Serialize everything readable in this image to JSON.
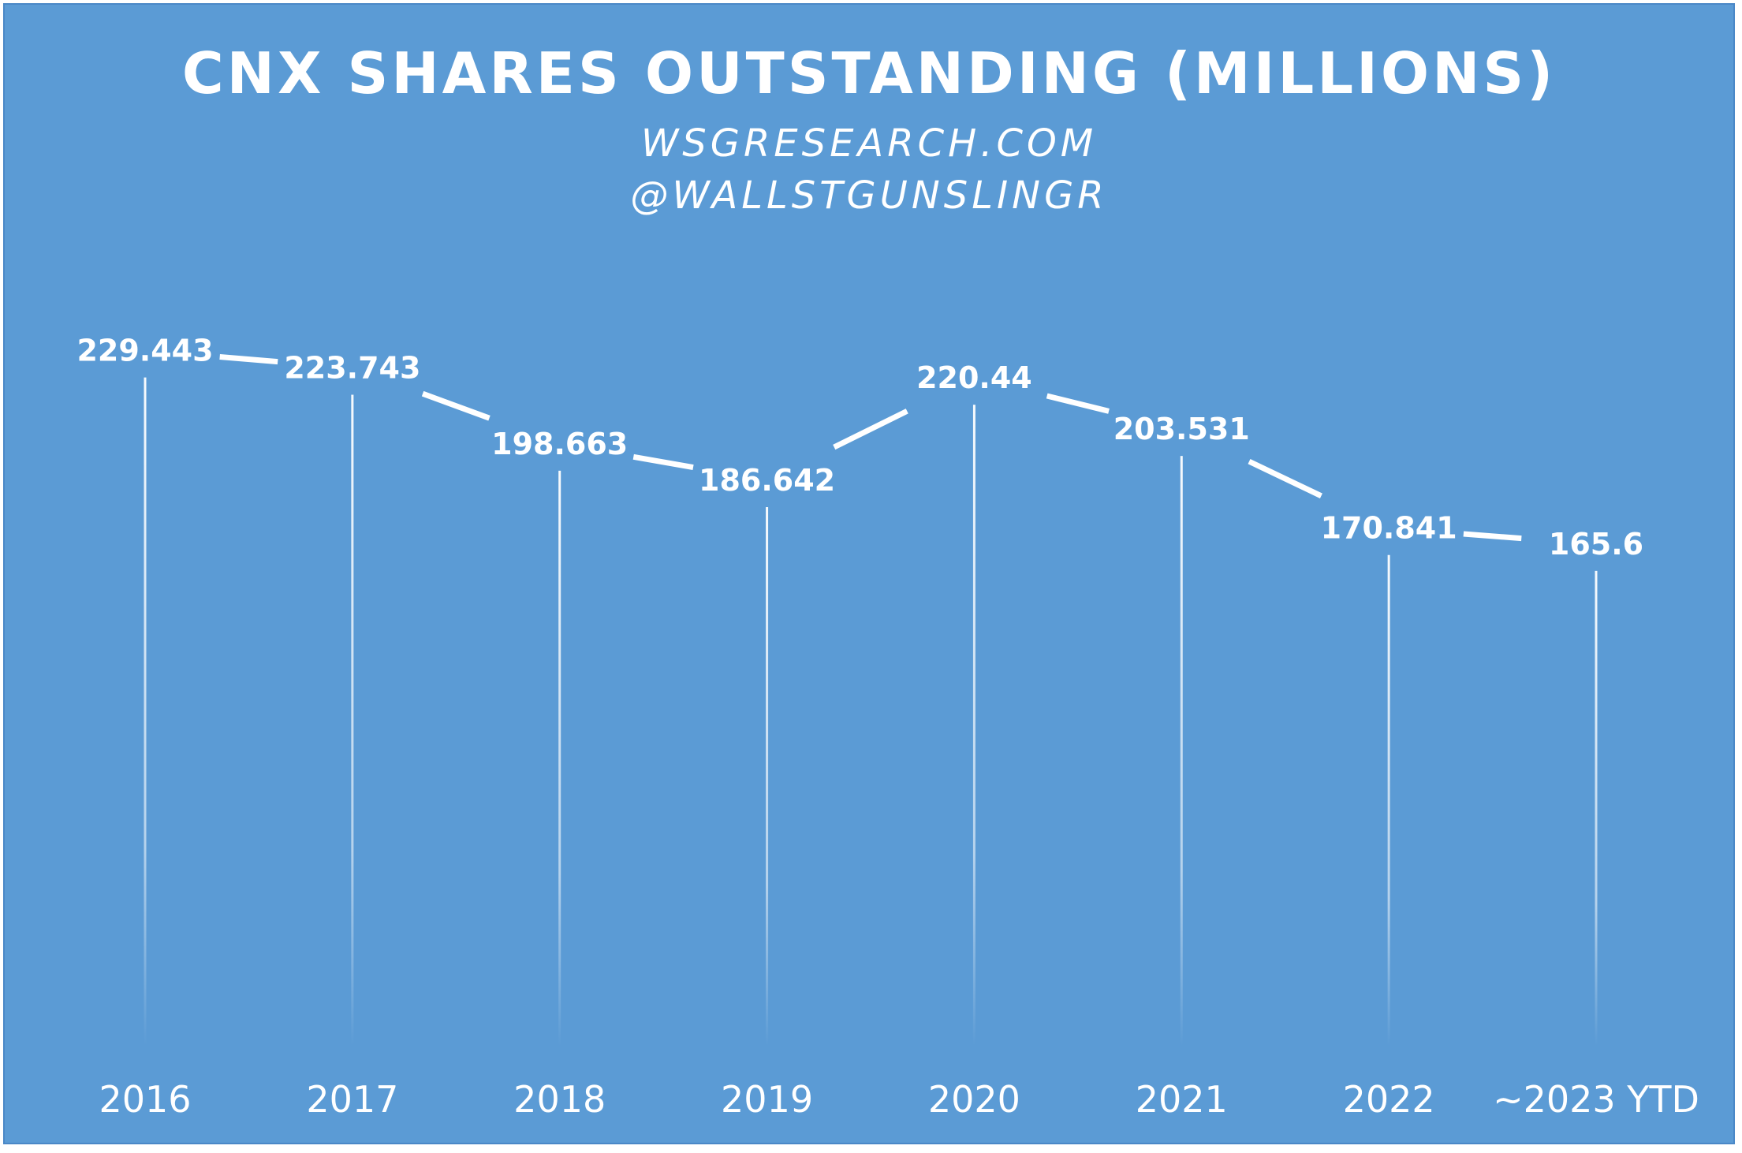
{
  "chart_data": {
    "type": "line",
    "title": "CNX SHARES OUTSTANDING (MILLIONS)",
    "subtitle_lines": [
      "WSGRESEARCH.COM",
      "@WALLSTGUNSLINGR"
    ],
    "categories": [
      "2016",
      "2017",
      "2018",
      "2019",
      "2020",
      "2021",
      "2022",
      "~2023 YTD"
    ],
    "values": [
      229.443,
      223.743,
      198.663,
      186.642,
      220.44,
      203.531,
      170.841,
      165.6
    ],
    "value_labels": [
      "229.443",
      "223.743",
      "198.663",
      "186.642",
      "220.44",
      "203.531",
      "170.841",
      "165.6"
    ],
    "xlabel": "",
    "ylabel": "",
    "ylim": [
      0,
      290
    ],
    "grid": false,
    "drop_lines": true,
    "data_labels": true,
    "colors": {
      "background": "#5b9bd5",
      "line": "#ffffff",
      "text": "#ffffff"
    }
  }
}
